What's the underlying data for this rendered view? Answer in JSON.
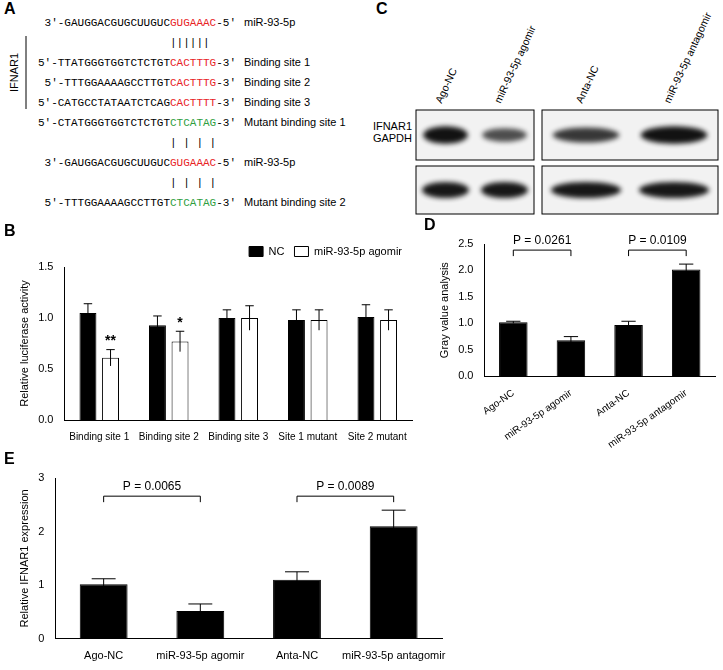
{
  "panel_a": {
    "title": "A",
    "gene": "IFNAR1",
    "lines": [
      {
        "segments": [
          {
            "text": "3'-GAUGGACGUGCUUGUC"
          },
          {
            "text": "GUGAAAC",
            "color": "#e8231f"
          },
          {
            "text": "-5'"
          }
        ],
        "label": "miR-93-5p"
      },
      {
        "pairs": "||||||"
      },
      {
        "segments": [
          {
            "text": "5'-TTATGGGTGGTCTCTGT"
          },
          {
            "text": "CACTTTG",
            "color": "#e8231f"
          },
          {
            "text": "-3'"
          }
        ],
        "label": "Binding site 1"
      },
      {
        "segments": [
          {
            "text": "5'-TTTGGAAAAGCCTTGT"
          },
          {
            "text": "CACTTTG",
            "color": "#e8231f"
          },
          {
            "text": "-3'"
          }
        ],
        "label": "Binding site 2"
      },
      {
        "segments": [
          {
            "text": "5'-CATGCCTATAATCTCAG"
          },
          {
            "text": "CACTTTT",
            "color": "#e8231f"
          },
          {
            "text": "-3'"
          }
        ],
        "label": "Binding site 3"
      },
      {
        "segments": [
          {
            "text": "5'-CTATGGGTGGTCTCTGT"
          },
          {
            "text": "CTCATAG",
            "color": "#2e9e3e"
          },
          {
            "text": "-3'"
          }
        ],
        "label": "Mutant binding site 1"
      },
      {
        "pairs": "| | | |"
      },
      {
        "segments": [
          {
            "text": "3'-GAUGGACGUGCUUGUC"
          },
          {
            "text": "GUGAAAC",
            "color": "#e8231f"
          },
          {
            "text": "-5'"
          }
        ],
        "label": "miR-93-5p"
      },
      {
        "pairs": "| | | |"
      },
      {
        "segments": [
          {
            "text": "5'-TTTGGAAAAGCCTTGT"
          },
          {
            "text": "CTCATAG",
            "color": "#2e9e3e"
          },
          {
            "text": "-3'"
          }
        ],
        "label": "Mutant binding site 2"
      }
    ]
  },
  "panel_c": {
    "title": "C",
    "lanes": [
      [
        "Ago-NC",
        "miR-93-5p agomir"
      ],
      [
        "Anta-NC",
        "miR-93-5p antagomir"
      ]
    ],
    "rows": [
      "IFNAR1",
      "GAPDH"
    ]
  },
  "chart_data": [
    {
      "type": "bar",
      "title": "B",
      "y_label": "Relative luciferase activity",
      "categories": [
        "Binding site 1",
        "Binding site 2",
        "Binding site 3",
        "Site 1 mutant",
        "Site 2 mutant"
      ],
      "series": [
        {
          "name": "NC",
          "color": "#000000",
          "values": [
            1.05,
            0.93,
            1.0,
            0.98,
            1.01
          ],
          "errors": [
            0.09,
            0.09,
            0.08,
            0.1,
            0.12
          ]
        },
        {
          "name": "miR-93-5p agomir",
          "color": "#ffffff",
          "values": [
            0.61,
            0.77,
            1.0,
            0.98,
            0.98
          ],
          "errors": [
            0.08,
            0.1,
            0.12,
            0.1,
            0.1
          ]
        }
      ],
      "annotations": [
        {
          "text": "**",
          "category": "Binding site 1",
          "series": "miR-93-5p agomir"
        },
        {
          "text": "*",
          "category": "Binding site 2",
          "series": "miR-93-5p agomir"
        }
      ],
      "ylim": [
        0,
        1.5
      ],
      "yticks": [
        {
          "value": 0,
          "label": "0.0"
        },
        0.5,
        {
          "value": 1,
          "label": "1.0"
        },
        {
          "value": 1.5,
          "label": "1.5"
        }
      ],
      "grid": false,
      "legend": "upper right"
    },
    {
      "type": "bar",
      "title": "D",
      "y_label": "Gray value analysis",
      "categories": [
        "Ago-NC",
        "miR-93-5p agomir",
        "Anta-NC",
        "miR-93-5p antagomir"
      ],
      "values": [
        1.02,
        0.68,
        0.97,
        2.02
      ],
      "errors": [
        0.02,
        0.07,
        0.07,
        0.1
      ],
      "color": "#000000",
      "comparisons": [
        {
          "from": "Ago-NC",
          "to": "miR-93-5p agomir",
          "text": "P = 0.0261"
        },
        {
          "from": "Anta-NC",
          "to": "miR-93-5p antagomir",
          "text": "P = 0.0109"
        }
      ],
      "ylim": [
        0,
        2.5
      ],
      "yticks": [
        {
          "value": 0,
          "label": "0.0"
        },
        0.5,
        {
          "value": 1,
          "label": "1.0"
        },
        1.5,
        {
          "value": 2,
          "label": "2.0"
        },
        2.5
      ],
      "grid": false
    },
    {
      "type": "bar",
      "title": "E",
      "y_label": "Relative IFNAR1 expression",
      "categories": [
        "Ago-NC",
        "miR-93-5p agomir",
        "Anta-NC",
        "miR-93-5p antagomir"
      ],
      "values": [
        1.02,
        0.52,
        1.1,
        2.1
      ],
      "errors": [
        0.1,
        0.13,
        0.15,
        0.3
      ],
      "color": "#000000",
      "comparisons": [
        {
          "from": "Ago-NC",
          "to": "miR-93-5p agomir",
          "text": "P = 0.0065"
        },
        {
          "from": "Anta-NC",
          "to": "miR-93-5p antagomir",
          "text": "P = 0.0089"
        }
      ],
      "ylim": [
        0,
        3
      ],
      "yticks": [
        0,
        1,
        2,
        3
      ],
      "grid": false
    }
  ]
}
